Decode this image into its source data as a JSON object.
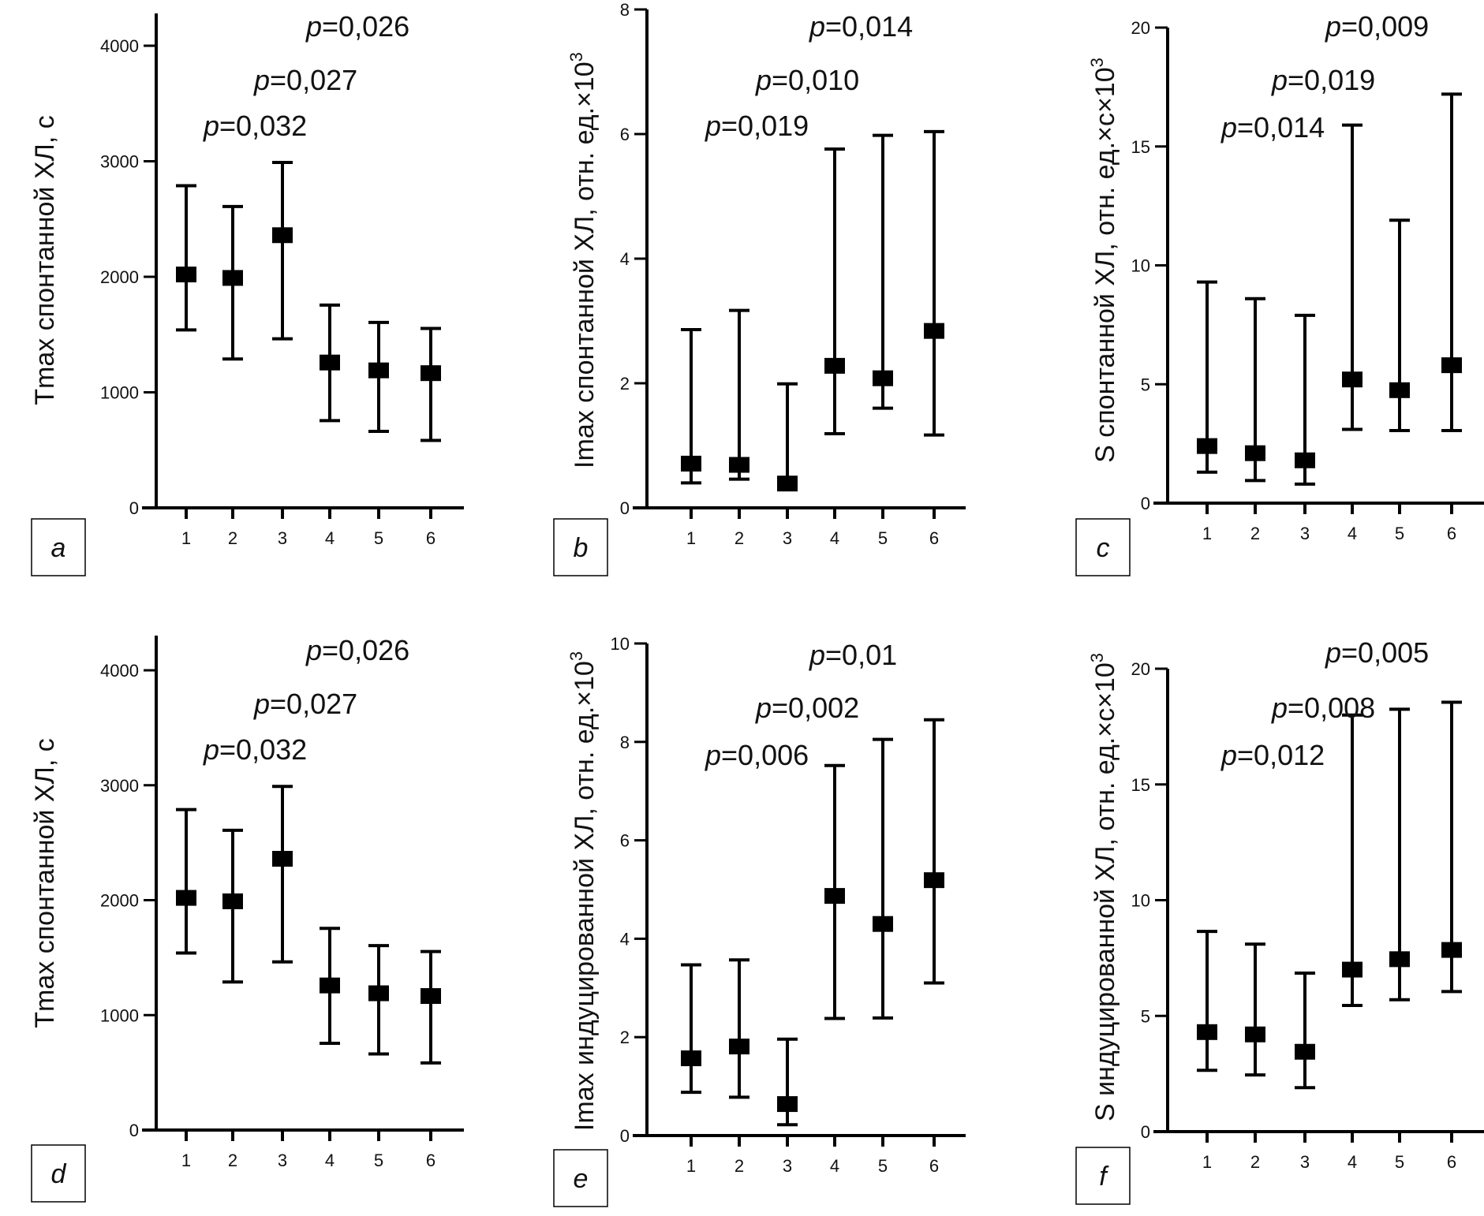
{
  "chart_data": [
    {
      "id": "a",
      "type": "scatter",
      "panel_label": "a",
      "title": "",
      "xlabel": "",
      "ylabel": "Tmax спонтанной ХЛ, с",
      "ylabel_sup": "",
      "categories": [
        "1",
        "2",
        "3",
        "4",
        "5",
        "6"
      ],
      "yticks": [
        "0",
        "1000",
        "2000",
        "3000",
        "4000"
      ],
      "ytick_values": [
        0,
        1000,
        2000,
        3000,
        4000
      ],
      "ylim": [
        0,
        4300
      ],
      "series": [
        {
          "name": "median",
          "values": [
            2020,
            1990,
            2360,
            1258,
            1190,
            1166
          ]
        }
      ],
      "error_low": [
        1540,
        1288,
        1463,
        755,
        662,
        584
      ],
      "error_high": [
        2788,
        2608,
        2990,
        1755,
        1605,
        1553
      ],
      "annotations": [
        "=0,032",
        "=0,027",
        "=0,026"
      ],
      "annotation_prefix": "p",
      "grid": false
    },
    {
      "id": "b",
      "type": "scatter",
      "panel_label": "b",
      "title": "",
      "xlabel": "",
      "ylabel": "Imax спонтанной ХЛ, отн. ед.×10",
      "ylabel_sup": "3",
      "categories": [
        "1",
        "2",
        "3",
        "4",
        "5",
        "6"
      ],
      "yticks": [
        "0",
        "2",
        "4",
        "6",
        "8"
      ],
      "ytick_values": [
        0,
        2,
        4,
        6,
        8
      ],
      "ylim": [
        0,
        8
      ],
      "series": [
        {
          "name": "median",
          "values": [
            0.71,
            0.69,
            0.39,
            2.28,
            2.08,
            2.84
          ]
        }
      ],
      "error_low": [
        0.4,
        0.46,
        0.3,
        1.19,
        1.6,
        1.17
      ],
      "error_high": [
        2.86,
        3.17,
        1.99,
        5.76,
        5.98,
        6.04
      ],
      "annotations": [
        "=0,019",
        "=0,010",
        "=0,014"
      ],
      "annotation_prefix": "p",
      "grid": false
    },
    {
      "id": "c",
      "type": "scatter",
      "panel_label": "c",
      "title": "",
      "xlabel": "",
      "ylabel": "S спонтанной ХЛ, отн. ед.×с×10",
      "ylabel_sup": "3",
      "categories": [
        "1",
        "2",
        "3",
        "4",
        "5",
        "6"
      ],
      "yticks": [
        "0",
        "5",
        "10",
        "15",
        "20"
      ],
      "ytick_values": [
        0,
        5,
        10,
        15,
        20
      ],
      "ylim": [
        0,
        20
      ],
      "series": [
        {
          "name": "median",
          "values": [
            2.4,
            2.1,
            1.8,
            5.2,
            4.75,
            5.8
          ]
        }
      ],
      "error_low": [
        1.3,
        0.95,
        0.8,
        3.1,
        3.05,
        3.05
      ],
      "error_high": [
        9.3,
        8.6,
        7.9,
        15.9,
        11.9,
        17.2
      ],
      "annotations": [
        "=0,014",
        "=0,019",
        "=0,009"
      ],
      "annotation_prefix": "p",
      "grid": false
    },
    {
      "id": "d",
      "type": "scatter",
      "panel_label": "d",
      "title": "",
      "xlabel": "",
      "ylabel": "Tmax спонтанной ХЛ, с",
      "ylabel_sup": "",
      "categories": [
        "1",
        "2",
        "3",
        "4",
        "5",
        "6"
      ],
      "yticks": [
        "0",
        "1000",
        "2000",
        "3000",
        "4000"
      ],
      "ytick_values": [
        0,
        1000,
        2000,
        3000,
        4000
      ],
      "ylim": [
        0,
        4300
      ],
      "series": [
        {
          "name": "median",
          "values": [
            2020,
            1990,
            2360,
            1258,
            1190,
            1166
          ]
        }
      ],
      "error_low": [
        1540,
        1288,
        1463,
        755,
        662,
        584
      ],
      "error_high": [
        2788,
        2608,
        2990,
        1755,
        1605,
        1553
      ],
      "annotations": [
        "=0,032",
        "=0,027",
        "=0,026"
      ],
      "annotation_prefix": "p",
      "grid": false
    },
    {
      "id": "e",
      "type": "scatter",
      "panel_label": "e",
      "title": "",
      "xlabel": "",
      "ylabel": "Imax индуцированной ХЛ, отн. ед.×10",
      "ylabel_sup": "3",
      "categories": [
        "1",
        "2",
        "3",
        "4",
        "5",
        "6"
      ],
      "yticks": [
        "0",
        "2",
        "4",
        "6",
        "8",
        "10"
      ],
      "ytick_values": [
        0,
        2,
        4,
        6,
        8,
        10
      ],
      "ylim": [
        0,
        10
      ],
      "series": [
        {
          "name": "median",
          "values": [
            1.57,
            1.81,
            0.64,
            4.87,
            4.3,
            5.19
          ]
        }
      ],
      "error_low": [
        0.88,
        0.78,
        0.22,
        2.38,
        2.39,
        3.1
      ],
      "error_high": [
        3.47,
        3.57,
        1.96,
        7.52,
        8.05,
        8.45
      ],
      "annotations": [
        "=0,006",
        "=0,002",
        "=0,01"
      ],
      "annotation_prefix": "p",
      "grid": false
    },
    {
      "id": "f",
      "type": "scatter",
      "panel_label": "f",
      "title": "",
      "xlabel": "",
      "ylabel": "S индуцированной ХЛ, отн. ед.×с×10",
      "ylabel_sup": "3",
      "categories": [
        "1",
        "2",
        "3",
        "4",
        "5",
        "6"
      ],
      "yticks": [
        "0",
        "5",
        "10",
        "15",
        "20"
      ],
      "ytick_values": [
        0,
        5,
        10,
        15,
        20
      ],
      "ylim": [
        0,
        20
      ],
      "series": [
        {
          "name": "median",
          "values": [
            4.3,
            4.2,
            3.45,
            7.0,
            7.45,
            7.85
          ]
        }
      ],
      "error_low": [
        2.65,
        2.45,
        1.9,
        5.45,
        5.7,
        6.05
      ],
      "error_high": [
        8.65,
        8.1,
        6.85,
        18.0,
        18.25,
        18.55
      ],
      "annotations": [
        "=0,012",
        "=0,008",
        "=0,005"
      ],
      "annotation_prefix": "p",
      "grid": false
    }
  ]
}
